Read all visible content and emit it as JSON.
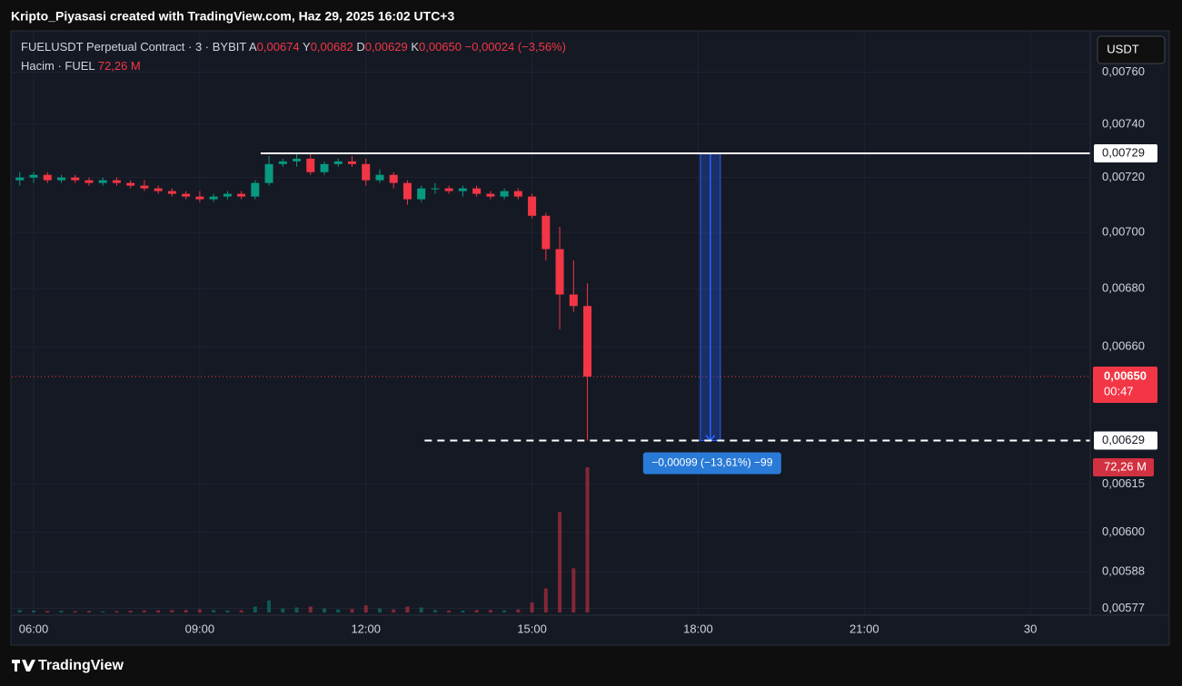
{
  "header": "Kripto_Piyasasi created with TradingView.com, Haz 29, 2025 16:02 UTC+3",
  "currency_button": "USDT",
  "footer": "TradingView",
  "chart_data": {
    "type": "candlestick",
    "legend": {
      "symbol": "FUELUSDT Perpetual Contract · 3 · BYBIT",
      "items": [
        {
          "key": "A",
          "value": "0,00674"
        },
        {
          "key": "Y",
          "value": "0,00682"
        },
        {
          "key": "D",
          "value": "0,00629"
        },
        {
          "key": "K",
          "value": "0,00650"
        }
      ],
      "change": "−0,00024 (−3,56%)",
      "volume_name": "Hacim · FUEL"
    },
    "x": [
      5.75,
      6,
      6.25,
      6.5,
      6.75,
      7,
      7.25,
      7.5,
      7.75,
      8,
      8.25,
      8.5,
      8.75,
      9,
      9.25,
      9.5,
      9.75,
      10,
      10.25,
      10.5,
      10.75,
      11,
      11.25,
      11.5,
      11.75,
      12,
      12.25,
      12.5,
      12.75,
      13,
      13.25,
      13.5,
      13.75,
      14,
      14.25,
      14.5,
      14.75,
      15,
      15.25,
      15.5,
      15.75,
      16
    ],
    "open": [
      0.00719,
      0.0072,
      0.00721,
      0.00719,
      0.0072,
      0.00719,
      0.00718,
      0.00719,
      0.00718,
      0.00717,
      0.00716,
      0.00715,
      0.00714,
      0.00713,
      0.00712,
      0.00713,
      0.00714,
      0.00713,
      0.00718,
      0.00725,
      0.00726,
      0.00727,
      0.00722,
      0.00725,
      0.00726,
      0.00725,
      0.00719,
      0.00721,
      0.00718,
      0.00712,
      0.00716,
      0.00716,
      0.00715,
      0.00716,
      0.00714,
      0.00713,
      0.00715,
      0.00713,
      0.00706,
      0.00694,
      0.00678,
      0.00674
    ],
    "high": [
      0.00722,
      0.00722,
      0.00722,
      0.00721,
      0.00721,
      0.0072,
      0.0072,
      0.0072,
      0.00719,
      0.00719,
      0.00717,
      0.00716,
      0.00715,
      0.00715,
      0.00714,
      0.00715,
      0.00715,
      0.00719,
      0.00728,
      0.00727,
      0.00729,
      0.00729,
      0.00726,
      0.00727,
      0.00728,
      0.00727,
      0.00723,
      0.00722,
      0.00719,
      0.00717,
      0.00718,
      0.00717,
      0.00717,
      0.00717,
      0.00715,
      0.00716,
      0.00716,
      0.00714,
      0.00707,
      0.00702,
      0.0069,
      0.00682
    ],
    "low": [
      0.00717,
      0.00718,
      0.00718,
      0.00718,
      0.00718,
      0.00717,
      0.00717,
      0.00717,
      0.00716,
      0.00715,
      0.00714,
      0.00713,
      0.00712,
      0.00711,
      0.00711,
      0.00712,
      0.00712,
      0.00712,
      0.00717,
      0.00724,
      0.00724,
      0.00721,
      0.00721,
      0.00724,
      0.00724,
      0.00717,
      0.00718,
      0.00716,
      0.0071,
      0.00711,
      0.00714,
      0.00714,
      0.00713,
      0.00713,
      0.00712,
      0.00712,
      0.00712,
      0.00705,
      0.0069,
      0.00666,
      0.00672,
      0.00629
    ],
    "close": [
      0.0072,
      0.00721,
      0.00719,
      0.0072,
      0.00719,
      0.00718,
      0.00719,
      0.00718,
      0.00717,
      0.00716,
      0.00715,
      0.00714,
      0.00713,
      0.00712,
      0.00713,
      0.00714,
      0.00713,
      0.00718,
      0.00725,
      0.00726,
      0.00727,
      0.00722,
      0.00725,
      0.00726,
      0.00725,
      0.00719,
      0.00721,
      0.00718,
      0.00712,
      0.00716,
      0.00716,
      0.00715,
      0.00716,
      0.00714,
      0.00713,
      0.00715,
      0.00713,
      0.00706,
      0.00694,
      0.00678,
      0.00674,
      0.0065
    ],
    "volume": [
      1.2,
      1,
      0.8,
      0.9,
      0.7,
      0.8,
      0.6,
      0.7,
      0.9,
      1,
      1.1,
      1.2,
      1.3,
      1.5,
      1.2,
      1,
      1.1,
      3,
      6,
      2,
      2.5,
      3,
      2,
      1.5,
      1.8,
      3.5,
      2,
      1.5,
      3,
      2.5,
      1.2,
      1,
      1,
      1.2,
      1.3,
      1.1,
      1.5,
      5,
      12,
      50,
      22,
      72.26
    ],
    "volume_label": "72,26 M",
    "up_color": "#089981",
    "down_color": "#f23645",
    "log_scale": true,
    "grid": true,
    "ylim": [
      0.00575,
      0.00776
    ],
    "yticks": [
      {
        "value": 0.0076,
        "label": "0,00760"
      },
      {
        "value": 0.0074,
        "label": "0,00740"
      },
      {
        "value": 0.0072,
        "label": "0,00720"
      },
      {
        "value": 0.007,
        "label": "0,00700"
      },
      {
        "value": 0.0068,
        "label": "0,00680"
      },
      {
        "value": 0.0066,
        "label": "0,00660"
      },
      {
        "value": 0.00615,
        "label": "0,00615"
      },
      {
        "value": 0.006,
        "label": "0,00600"
      },
      {
        "value": 0.00588,
        "label": "0,00588"
      },
      {
        "value": 0.00577,
        "label": "0,00577"
      }
    ],
    "xlim": [
      5.606,
      25.08
    ],
    "xticks": [
      {
        "value": 6,
        "label": "06:00"
      },
      {
        "value": 9,
        "label": "09:00"
      },
      {
        "value": 12,
        "label": "12:00"
      },
      {
        "value": 15,
        "label": "15:00"
      },
      {
        "value": 18,
        "label": "18:00"
      },
      {
        "value": 21,
        "label": "21:00"
      },
      {
        "value": 24,
        "label": "30"
      }
    ],
    "last_price": {
      "value": 0.0065,
      "label": "0,00650",
      "countdown": "00:47"
    },
    "levels": [
      {
        "value": 0.00729,
        "label": "0,00729",
        "x_start": 10.1,
        "style": "solid"
      },
      {
        "value": 0.00629,
        "label": "0,00629",
        "x_start": 13.06,
        "style": "dashed"
      }
    ],
    "measure": {
      "from": 0.00729,
      "to": 0.00629,
      "x": [
        18.04,
        18.4
      ],
      "label": "−0,00099 (−13,61%) −99"
    }
  }
}
